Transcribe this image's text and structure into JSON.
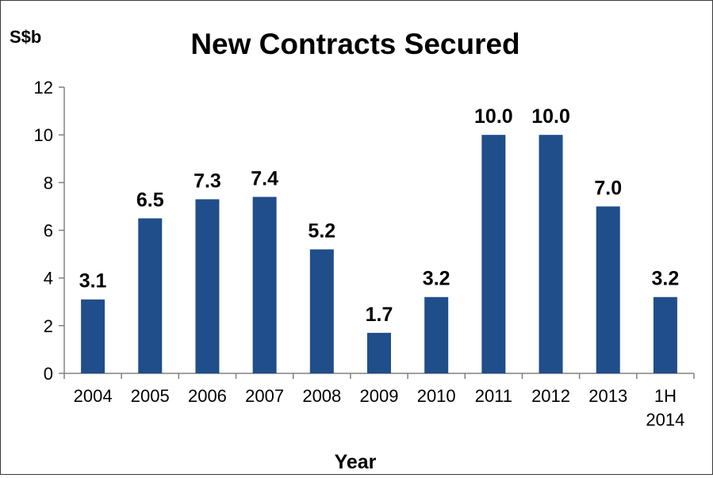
{
  "chart_data": {
    "type": "bar",
    "title": "New Contracts Secured",
    "ylabel": "S$b",
    "xlabel": "Year",
    "categories": [
      [
        "2004"
      ],
      [
        "2005"
      ],
      [
        "2006"
      ],
      [
        "2007"
      ],
      [
        "2008"
      ],
      [
        "2009"
      ],
      [
        "2010"
      ],
      [
        "2011"
      ],
      [
        "2012"
      ],
      [
        "2013"
      ],
      [
        "1H",
        "2014"
      ]
    ],
    "values": [
      3.1,
      6.5,
      7.3,
      7.4,
      5.2,
      1.7,
      3.2,
      10.0,
      10.0,
      7.0,
      3.2
    ],
    "value_labels": [
      "3.1",
      "6.5",
      "7.3",
      "7.4",
      "5.2",
      "1.7",
      "3.2",
      "10.0",
      "10.0",
      "7.0",
      "3.2"
    ],
    "ylim": [
      0,
      12
    ],
    "yticks": [
      "0",
      "2",
      "4",
      "6",
      "8",
      "10",
      "12"
    ],
    "bar_color": "#1f4e8a",
    "grid": false,
    "legend": "none"
  }
}
